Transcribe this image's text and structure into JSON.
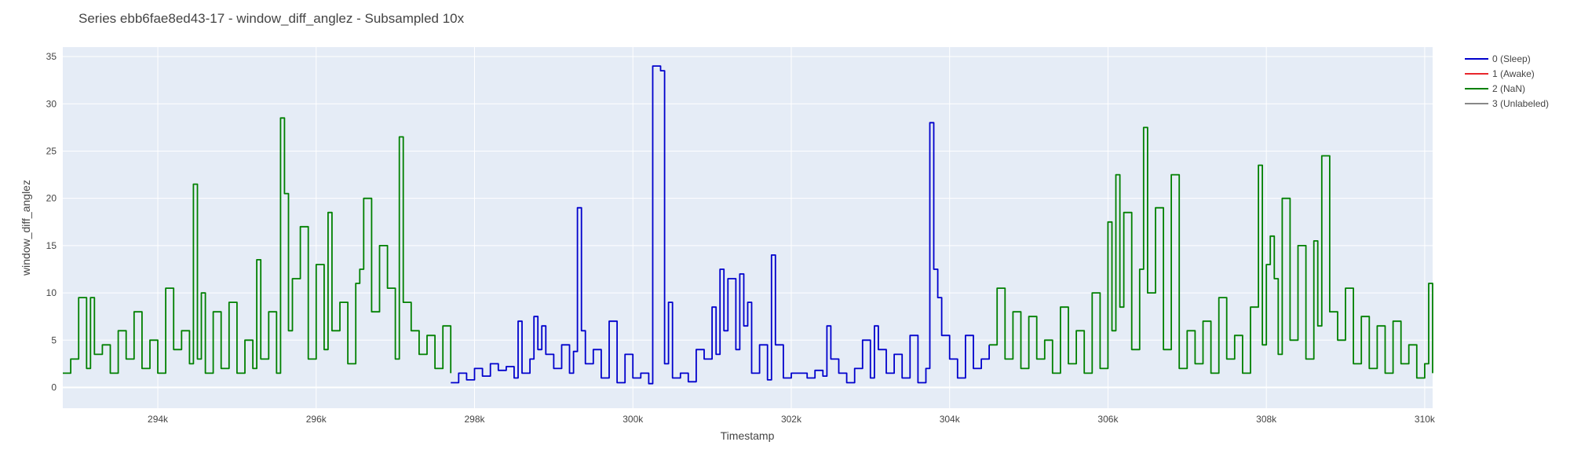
{
  "chart_data": {
    "type": "line",
    "title": "Series ebb6fae8ed43-17 - window_diff_anglez - Subsampled 10x",
    "xlabel": "Timestamp",
    "ylabel": "window_diff_anglez",
    "xlim": [
      292800,
      310100
    ],
    "ylim": [
      -2.2,
      36
    ],
    "x_ticks": [
      294000,
      296000,
      298000,
      300000,
      302000,
      304000,
      306000,
      308000,
      310000
    ],
    "x_tick_labels": [
      "294k",
      "296k",
      "298k",
      "300k",
      "302k",
      "304k",
      "306k",
      "308k",
      "310k"
    ],
    "y_ticks": [
      0,
      5,
      10,
      15,
      20,
      25,
      30,
      35
    ],
    "y_tick_labels": [
      "0",
      "5",
      "10",
      "15",
      "20",
      "25",
      "30",
      "35"
    ],
    "grid": true,
    "plot_background": "#E5ECF6",
    "legend_position": "top-right",
    "series": [
      {
        "name": "0 (Sleep)",
        "color": "#0000CC",
        "segments": [
          {
            "x": [
              297700,
              297800,
              297900,
              298000,
              298100,
              298200,
              298300,
              298400,
              298500,
              298550,
              298600,
              298700,
              298750,
              298800,
              298850,
              298900,
              299000,
              299100,
              299200,
              299250,
              299300,
              299350,
              299400,
              299500,
              299600,
              299700,
              299800,
              299900,
              300000,
              300100,
              300200,
              300250,
              300300,
              300350,
              300400,
              300450,
              300500,
              300600,
              300700,
              300800,
              300900,
              301000,
              301050,
              301100,
              301150,
              301200,
              301300,
              301350,
              301400,
              301450,
              301500,
              301600,
              301700,
              301750,
              301800,
              301900,
              302000,
              302100,
              302200,
              302300,
              302400,
              302450,
              302500,
              302600,
              302700,
              302800,
              302900,
              303000,
              303050,
              303100,
              303200,
              303300,
              303400,
              303500,
              303600,
              303700,
              303750,
              303800,
              303850,
              303900,
              304000,
              304100,
              304200,
              304300,
              304400,
              304500
            ],
            "y": [
              0.5,
              1.5,
              0.8,
              2.0,
              1.2,
              2.5,
              1.8,
              2.2,
              1.0,
              7.0,
              1.5,
              3.0,
              7.5,
              4.0,
              6.5,
              3.5,
              2.0,
              4.5,
              1.5,
              3.8,
              19.0,
              6.0,
              2.5,
              4.0,
              1.0,
              7.0,
              0.5,
              3.5,
              1.0,
              1.5,
              0.4,
              34.0,
              34.0,
              33.5,
              2.5,
              9.0,
              1.0,
              1.5,
              0.6,
              4.0,
              3.0,
              8.5,
              3.5,
              12.5,
              6.0,
              11.5,
              4.0,
              12.0,
              6.5,
              9.0,
              1.5,
              4.5,
              0.8,
              14.0,
              4.5,
              1.0,
              1.5,
              1.5,
              1.0,
              1.8,
              1.2,
              6.5,
              3.0,
              1.5,
              0.5,
              2.0,
              5.0,
              1.0,
              6.5,
              4.0,
              1.5,
              3.5,
              1.0,
              5.5,
              0.5,
              2.0,
              28.0,
              12.5,
              9.5,
              5.5,
              3.0,
              1.0,
              5.5,
              2.0,
              3.0,
              4.5
            ]
          }
        ]
      },
      {
        "name": "1 (Awake)",
        "color": "#E8262C",
        "segments": []
      },
      {
        "name": "2 (NaN)",
        "color": "#008000",
        "segments": [
          {
            "x": [
              292800,
              292900,
              293000,
              293100,
              293150,
              293200,
              293300,
              293400,
              293500,
              293600,
              293700,
              293800,
              293900,
              294000,
              294100,
              294200,
              294300,
              294400,
              294450,
              294500,
              294550,
              294600,
              294700,
              294800,
              294900,
              295000,
              295100,
              295200,
              295250,
              295300,
              295400,
              295500,
              295550,
              295600,
              295650,
              295700,
              295800,
              295900,
              296000,
              296100,
              296150,
              296200,
              296300,
              296400,
              296500,
              296550,
              296600,
              296700,
              296800,
              296900,
              297000,
              297050,
              297100,
              297200,
              297300,
              297400,
              297500,
              297600,
              297700
            ],
            "y": [
              1.5,
              3.0,
              9.5,
              2.0,
              9.5,
              3.5,
              4.5,
              1.5,
              6.0,
              3.0,
              8.0,
              2.0,
              5.0,
              1.5,
              10.5,
              4.0,
              6.0,
              2.5,
              21.5,
              3.0,
              10.0,
              1.5,
              8.0,
              2.0,
              9.0,
              1.5,
              5.0,
              2.0,
              13.5,
              3.0,
              8.0,
              1.5,
              28.5,
              20.5,
              6.0,
              11.5,
              17.0,
              3.0,
              13.0,
              4.0,
              18.5,
              6.0,
              9.0,
              2.5,
              11.0,
              12.5,
              20.0,
              8.0,
              15.0,
              10.5,
              3.0,
              26.5,
              9.0,
              6.0,
              3.5,
              5.5,
              2.0,
              6.5,
              1.5
            ]
          },
          {
            "x": [
              304500,
              304600,
              304700,
              304800,
              304900,
              305000,
              305100,
              305200,
              305300,
              305400,
              305500,
              305600,
              305700,
              305800,
              305900,
              306000,
              306050,
              306100,
              306150,
              306200,
              306300,
              306400,
              306450,
              306500,
              306600,
              306700,
              306800,
              306900,
              307000,
              307100,
              307200,
              307300,
              307400,
              307500,
              307600,
              307700,
              307800,
              307900,
              307950,
              308000,
              308050,
              308100,
              308150,
              308200,
              308300,
              308400,
              308500,
              308600,
              308650,
              308700,
              308800,
              308900,
              309000,
              309100,
              309200,
              309300,
              309400,
              309500,
              309600,
              309700,
              309800,
              309900,
              310000,
              310050,
              310100
            ],
            "y": [
              4.5,
              10.5,
              3.0,
              8.0,
              2.0,
              7.5,
              3.0,
              5.0,
              1.5,
              8.5,
              2.5,
              6.0,
              1.5,
              10.0,
              2.0,
              17.5,
              6.0,
              22.5,
              8.5,
              18.5,
              4.0,
              12.5,
              27.5,
              10.0,
              19.0,
              4.0,
              22.5,
              2.0,
              6.0,
              2.5,
              7.0,
              1.5,
              9.5,
              3.0,
              5.5,
              1.5,
              8.5,
              23.5,
              4.5,
              13.0,
              16.0,
              11.5,
              3.5,
              20.0,
              5.0,
              15.0,
              3.0,
              15.5,
              6.5,
              24.5,
              8.0,
              5.0,
              10.5,
              2.5,
              7.5,
              2.0,
              6.5,
              1.5,
              7.0,
              2.5,
              4.5,
              1.0,
              2.5,
              11.0,
              1.5
            ]
          }
        ]
      },
      {
        "name": "3 (Unlabeled)",
        "color": "#888888",
        "segments": []
      }
    ]
  }
}
